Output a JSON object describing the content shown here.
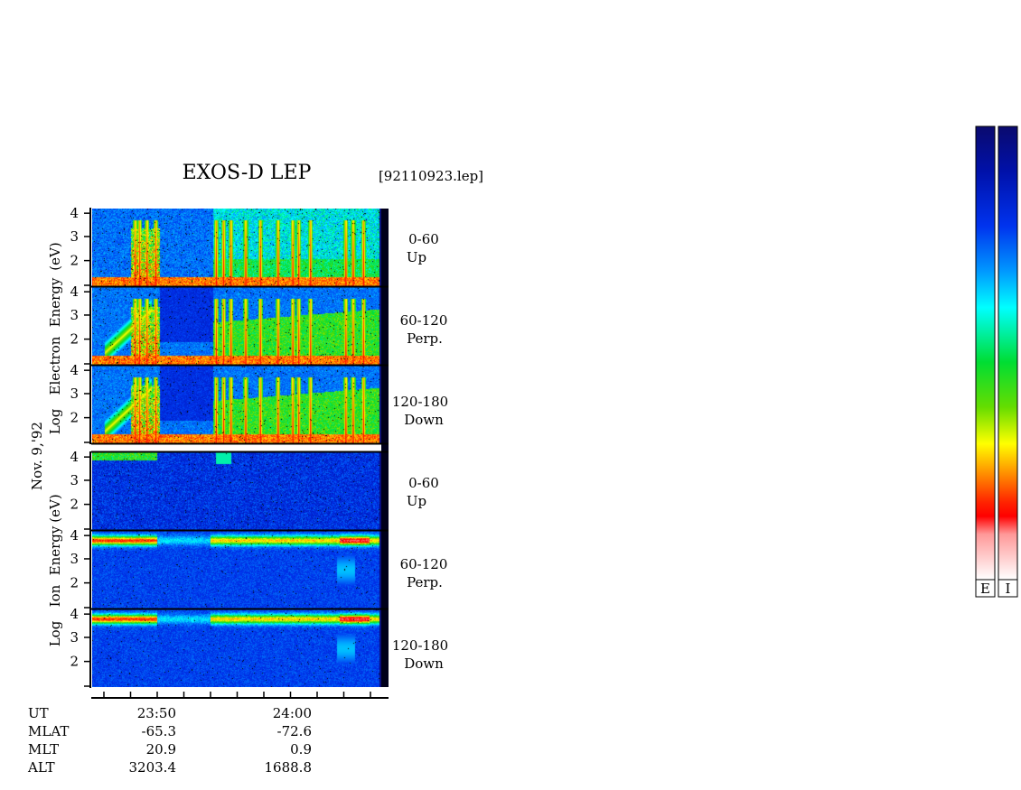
{
  "chart_data": {
    "type": "heatmap",
    "title": "EXOS-D LEP",
    "file_label": "[92110923.lep]",
    "date_label": "Nov. 9,'92",
    "electron_ylabel": [
      "Log",
      "Electron",
      "Energy",
      "(eV)"
    ],
    "ion_ylabel": [
      "Log",
      "Ion",
      "Energy",
      "(eV)"
    ],
    "panels": [
      {
        "species": "electron",
        "pitch_angle": "0-60",
        "direction": "Up",
        "yticks": [
          "2",
          "3",
          "4"
        ]
      },
      {
        "species": "electron",
        "pitch_angle": "60-120",
        "direction": "Perp.",
        "yticks": [
          "2",
          "3",
          "4"
        ]
      },
      {
        "species": "electron",
        "pitch_angle": "120-180",
        "direction": "Down",
        "yticks": [
          "2",
          "3",
          "4"
        ]
      },
      {
        "species": "ion",
        "pitch_angle": "0-60",
        "direction": "Up",
        "yticks": [
          "2",
          "3",
          "4"
        ]
      },
      {
        "species": "ion",
        "pitch_angle": "60-120",
        "direction": "Perp.",
        "yticks": [
          "2",
          "3",
          "4"
        ]
      },
      {
        "species": "ion",
        "pitch_angle": "120-180",
        "direction": "Down",
        "yticks": [
          "2",
          "3",
          "4"
        ]
      }
    ],
    "x_table": {
      "row_labels": [
        "UT",
        "MLAT",
        "MLT",
        "ALT"
      ],
      "columns": [
        {
          "UT": "23:50",
          "MLAT": "-65.3",
          "MLT": "20.9",
          "ALT": "3203.4"
        },
        {
          "UT": "24:00",
          "MLAT": "-72.6",
          "MLT": "0.9",
          "ALT": "1688.8"
        }
      ]
    },
    "colorbars": [
      {
        "label": "E"
      },
      {
        "label": "I"
      }
    ],
    "colorscale": [
      "#0a0a6e",
      "#0022dd",
      "#0088ff",
      "#00ffff",
      "#00dd33",
      "#eeff00",
      "#ff9900",
      "#ff0000",
      "#ffd8d8",
      "#ffffff"
    ]
  }
}
